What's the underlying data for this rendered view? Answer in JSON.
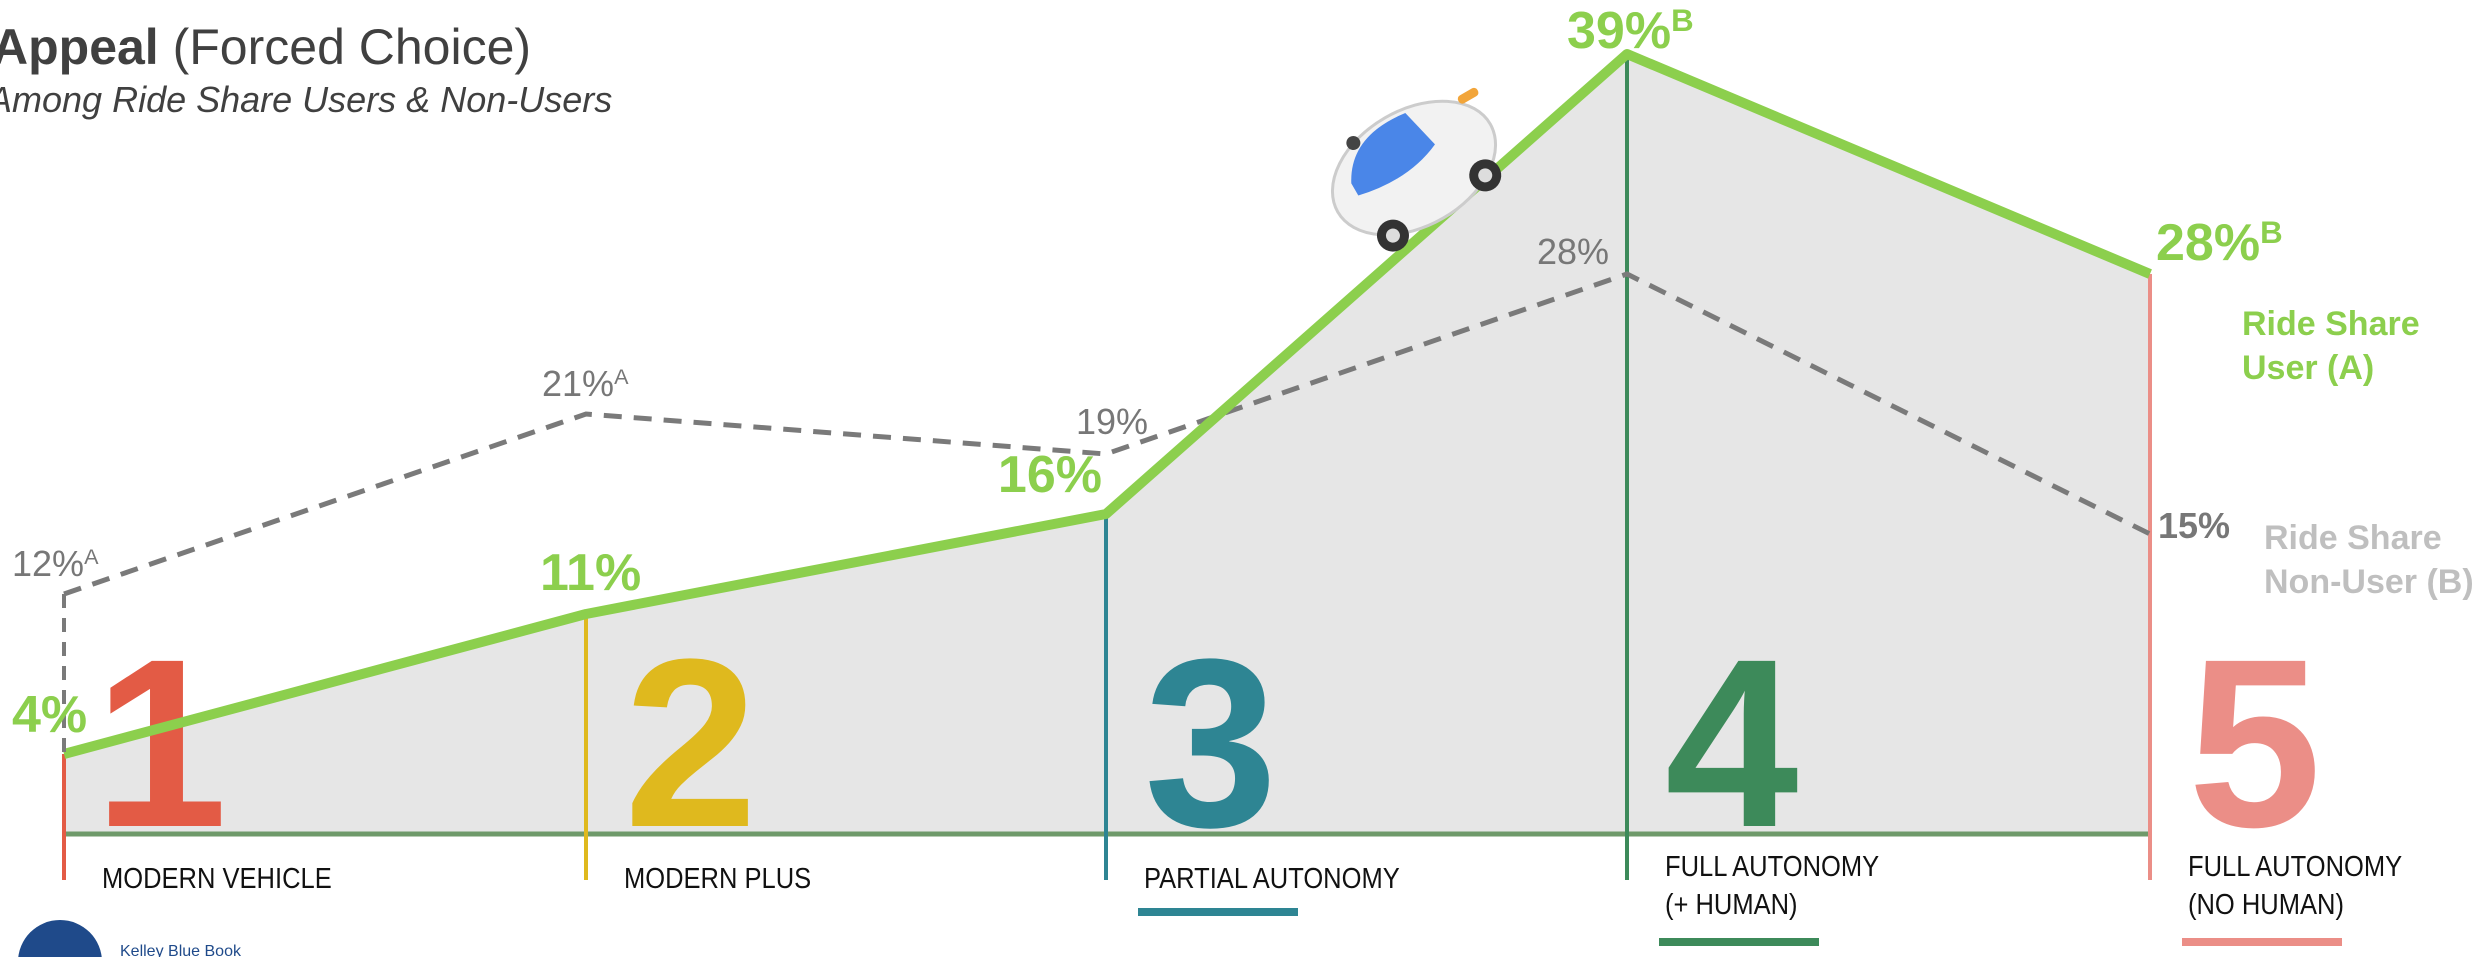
{
  "chart_data": {
    "type": "line",
    "title": "Appeal",
    "title_note": "(Forced Choice)",
    "subtitle": "Among Ride Share Users & Non-Users",
    "categories": [
      "MODERN VEHICLE",
      "MODERN PLUS",
      "PARTIAL AUTONOMY",
      "FULL AUTONOMY\n(+ HUMAN)",
      "FULL AUTONOMY\n(NO HUMAN)"
    ],
    "category_numbers": [
      1,
      2,
      3,
      4,
      5
    ],
    "category_colors": [
      "#e35b45",
      "#dfb91e",
      "#2e8593",
      "#3d8a5a",
      "#eb8e87"
    ],
    "series": [
      {
        "name": "Ride Share User (A)",
        "color": "#8ccf4d",
        "values": [
          4,
          11,
          16,
          39,
          28
        ],
        "value_labels": [
          "4%",
          "11%",
          "16%",
          "39%",
          "28%"
        ],
        "sig": [
          null,
          null,
          null,
          "B",
          "B"
        ]
      },
      {
        "name": "Ride Share Non-User (B)",
        "color": "#7a7a7a",
        "values": [
          12,
          21,
          19,
          28,
          15
        ],
        "value_labels": [
          "12%",
          "21%",
          "19%",
          "28%",
          "15%"
        ],
        "sig": [
          "A",
          "A",
          null,
          null,
          null
        ]
      }
    ],
    "ylim": [
      0,
      41.7
    ],
    "area_color": "#e6e6e6",
    "logo": "Kelley Blue Book"
  }
}
